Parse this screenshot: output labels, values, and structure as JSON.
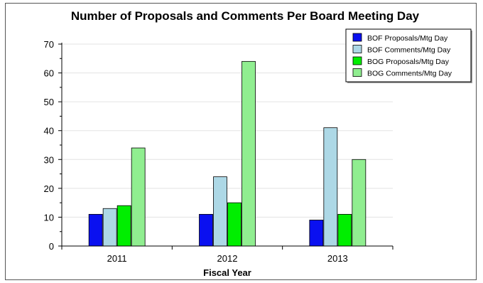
{
  "chart_data": {
    "type": "bar",
    "title": "Number of Proposals and Comments Per Board Meeting Day",
    "xlabel": "Fiscal Year",
    "ylabel": "",
    "categories": [
      "2011",
      "2012",
      "2013"
    ],
    "ylim": [
      0,
      70
    ],
    "yticks": [
      0,
      10,
      20,
      30,
      40,
      50,
      60,
      70
    ],
    "grid": true,
    "legend_position": "top-right",
    "series": [
      {
        "name": "BOF Proposals/Mtg Day",
        "color": "#0a10f0",
        "values": [
          11,
          11,
          9
        ]
      },
      {
        "name": "BOF Comments/Mtg Day",
        "color": "#add8e6",
        "values": [
          13,
          24,
          41
        ]
      },
      {
        "name": "BOG Proposals/Mtg Day",
        "color": "#00ee00",
        "values": [
          14,
          15,
          11
        ]
      },
      {
        "name": "BOG Comments/Mtg Day",
        "color": "#90ee90",
        "values": [
          34,
          64,
          30
        ]
      }
    ]
  }
}
